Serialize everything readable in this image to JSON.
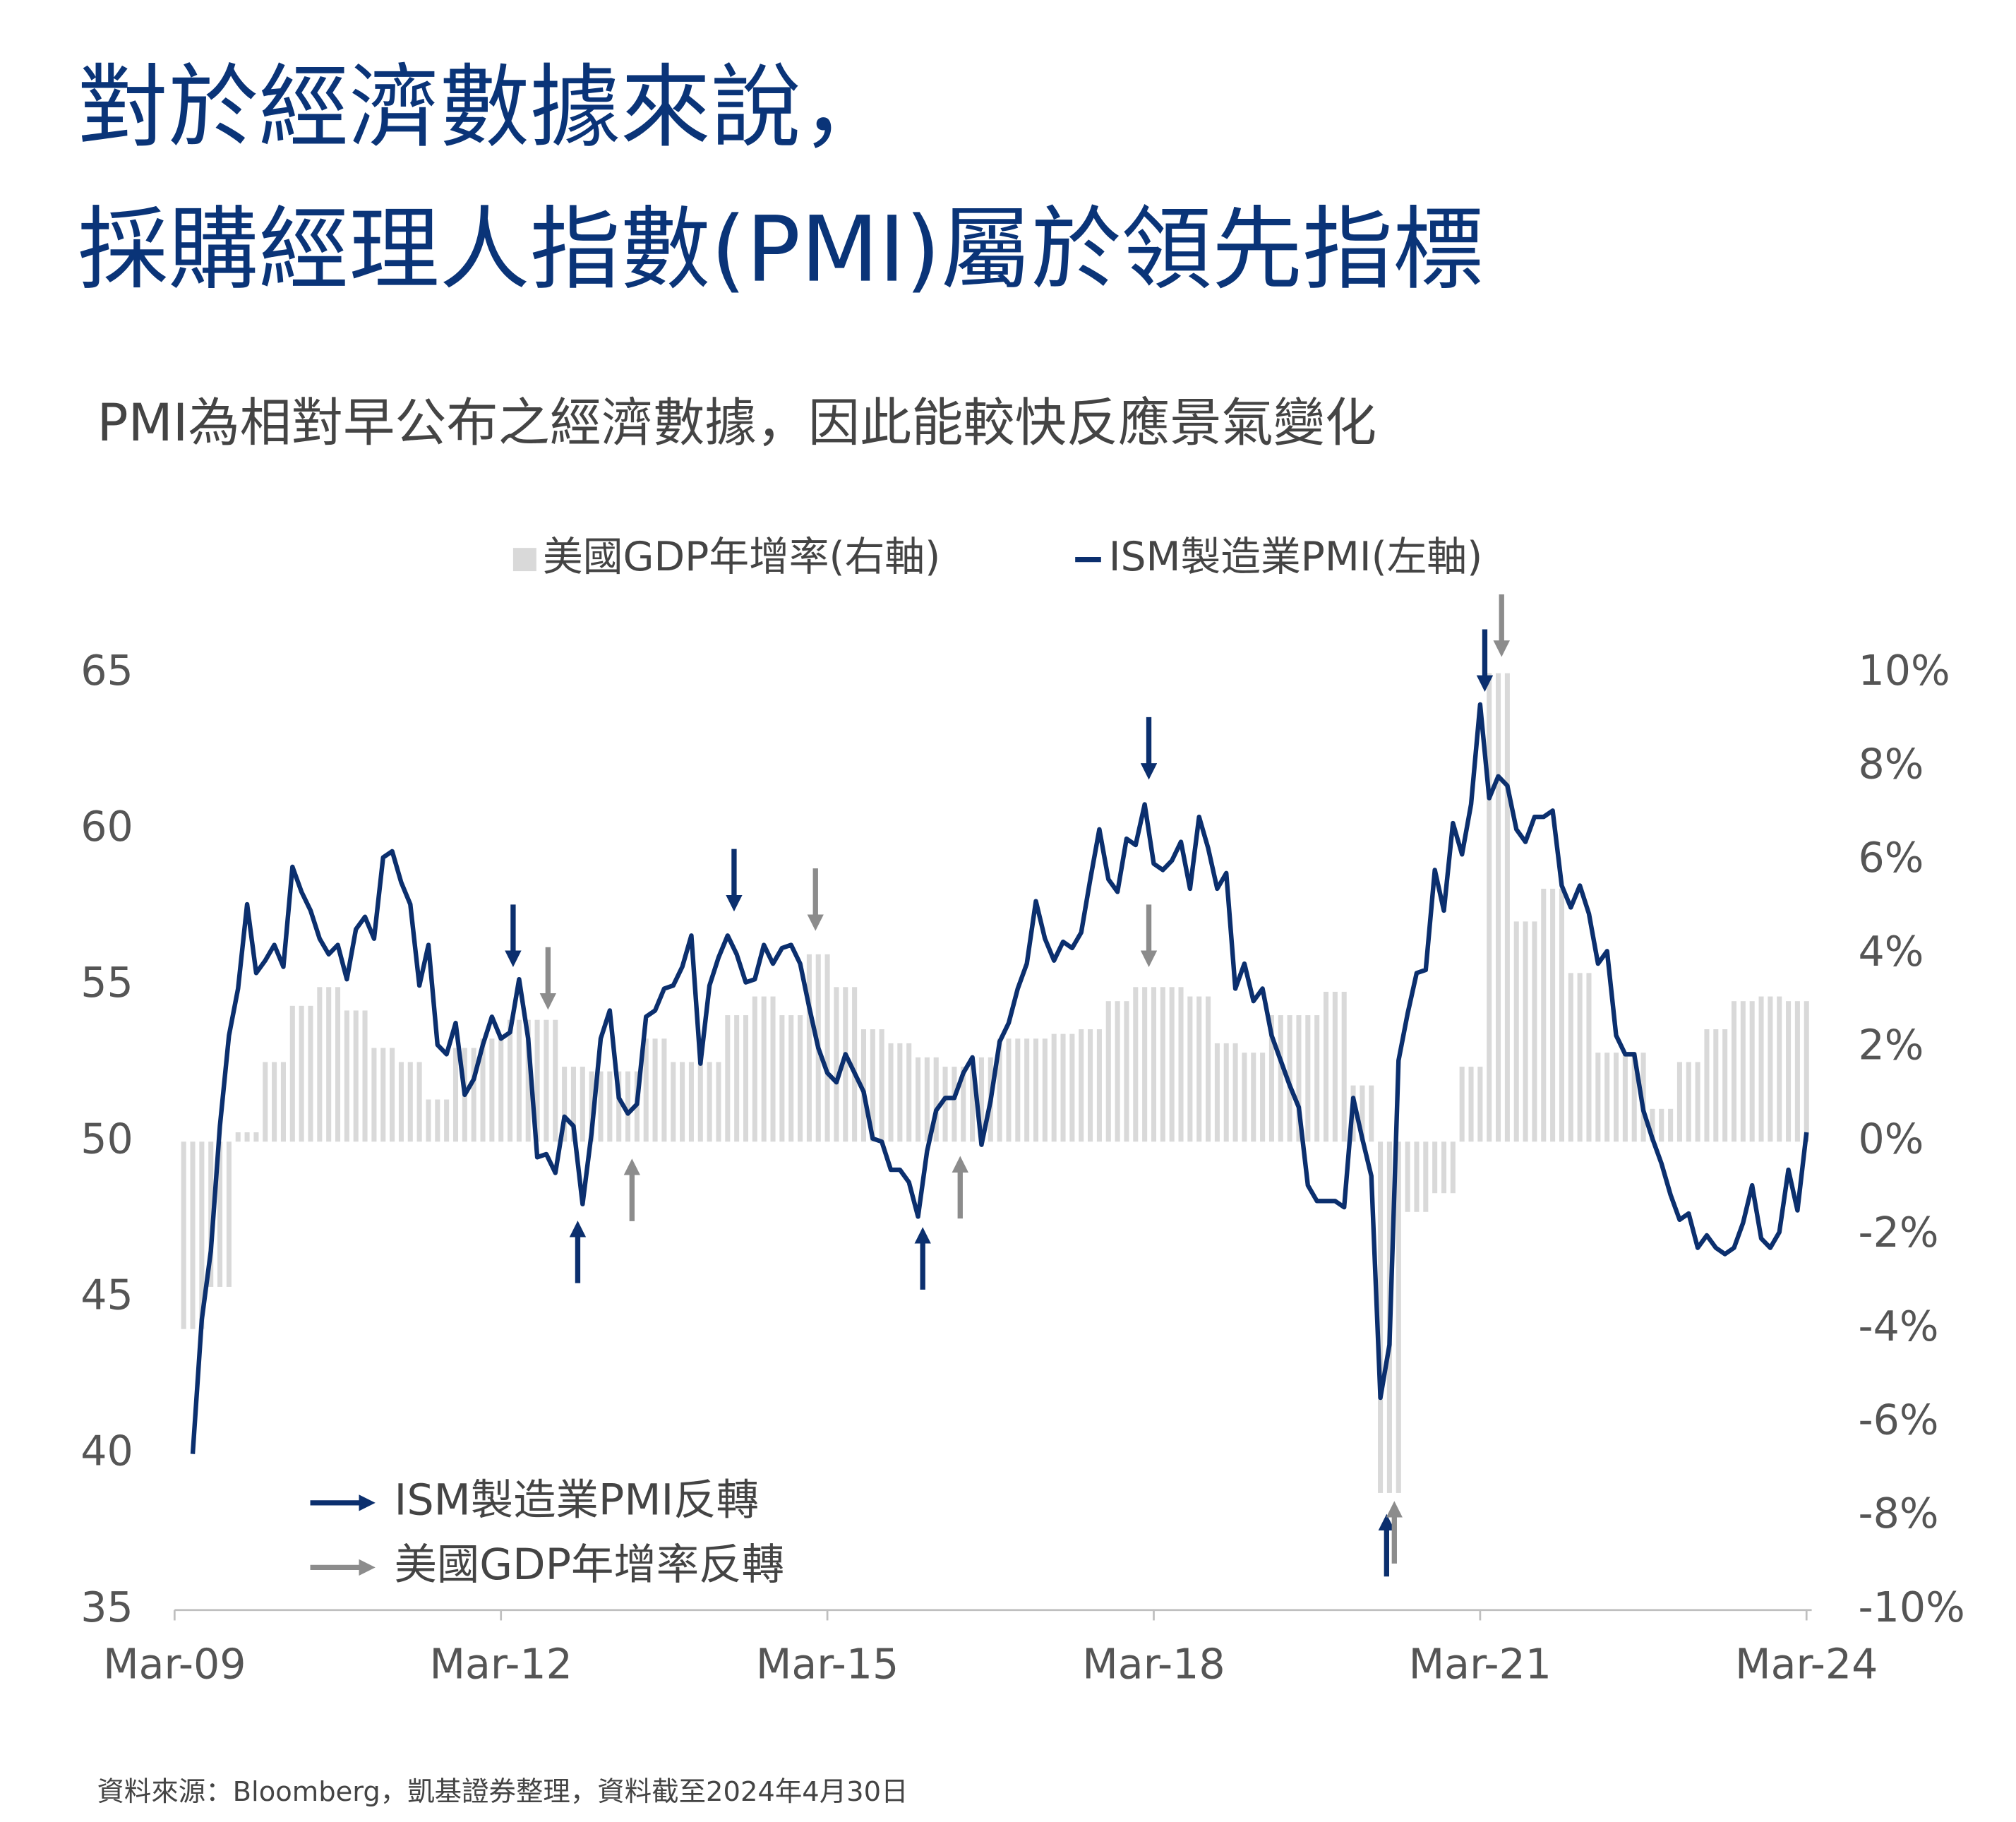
{
  "chart_data": {
    "type": "bar",
    "title": [
      "對於經濟數據來說，",
      "採購經理人指數(PMI)屬於領先指標"
    ],
    "subtitle": "PMI為相對早公布之經濟數據，因此能較快反應景氣變化",
    "source": "資料來源：Bloomberg，凱基證券整理，資料截至2024年4月30日",
    "categories": [
      "Mar-09",
      null,
      null,
      null,
      null,
      null,
      null,
      null,
      null,
      null,
      null,
      null,
      null,
      null,
      null,
      null,
      null,
      null,
      null,
      null,
      null,
      null,
      null,
      null,
      null,
      null,
      null,
      null,
      null,
      null,
      null,
      null,
      null,
      null,
      null,
      null,
      "Mar-12",
      null,
      null,
      null,
      null,
      null,
      null,
      null,
      null,
      null,
      null,
      null,
      null,
      null,
      null,
      null,
      null,
      null,
      null,
      null,
      null,
      null,
      null,
      null,
      null,
      null,
      null,
      null,
      null,
      null,
      null,
      null,
      null,
      null,
      null,
      null,
      "Mar-15",
      null,
      null,
      null,
      null,
      null,
      null,
      null,
      null,
      null,
      null,
      null,
      null,
      null,
      null,
      null,
      null,
      null,
      null,
      null,
      null,
      null,
      null,
      null,
      null,
      null,
      null,
      null,
      null,
      null,
      null,
      null,
      null,
      null,
      null,
      null,
      "Mar-18",
      null,
      null,
      null,
      null,
      null,
      null,
      null,
      null,
      null,
      null,
      null,
      null,
      null,
      null,
      null,
      null,
      null,
      null,
      null,
      null,
      null,
      null,
      null,
      null,
      null,
      null,
      null,
      null,
      null,
      null,
      null,
      null,
      null,
      null,
      null,
      "Mar-21",
      null,
      null,
      null,
      null,
      null,
      null,
      null,
      null,
      null,
      null,
      null,
      null,
      null,
      null,
      null,
      null,
      null,
      null,
      null,
      null,
      null,
      null,
      null,
      null,
      null,
      null,
      null,
      null,
      null,
      null,
      null,
      null,
      null,
      null,
      null,
      "Mar-24"
    ],
    "series": [
      {
        "name": "美國GDP年增率(右軸)",
        "type": "bar",
        "axis": "y2",
        "color": "#d9d9d9",
        "values": [
          null,
          -4,
          -4,
          -4,
          -3.1,
          -3.1,
          -3.1,
          0.2,
          0.2,
          0.2,
          1.7,
          1.7,
          1.7,
          2.9,
          2.9,
          2.9,
          3.3,
          3.3,
          3.3,
          2.8,
          2.8,
          2.8,
          2,
          2,
          2,
          1.7,
          1.7,
          1.7,
          0.9,
          0.9,
          0.9,
          2,
          2,
          2,
          2.2,
          2.2,
          2.2,
          2.6,
          2.6,
          2.6,
          2.6,
          2.6,
          2.6,
          1.6,
          1.6,
          1.6,
          1.5,
          1.5,
          1.5,
          1.5,
          1.5,
          1.5,
          2.2,
          2.2,
          2.2,
          1.7,
          1.7,
          1.7,
          1.7,
          1.7,
          1.7,
          2.7,
          2.7,
          2.7,
          3.1,
          3.1,
          3.1,
          2.7,
          2.7,
          2.7,
          4,
          4,
          4,
          3.3,
          3.3,
          3.3,
          2.4,
          2.4,
          2.4,
          2.1,
          2.1,
          2.1,
          1.8,
          1.8,
          1.8,
          1.6,
          1.6,
          1.6,
          1.8,
          1.8,
          1.8,
          2.2,
          2.2,
          2.2,
          2.2,
          2.2,
          2.2,
          2.3,
          2.3,
          2.3,
          2.4,
          2.4,
          2.4,
          3,
          3,
          3,
          3.3,
          3.3,
          3.3,
          3.3,
          3.3,
          3.3,
          3.1,
          3.1,
          3.1,
          2.1,
          2.1,
          2.1,
          1.9,
          1.9,
          1.9,
          2.7,
          2.7,
          2.7,
          2.7,
          2.7,
          2.7,
          3.2,
          3.2,
          3.2,
          1.2,
          1.2,
          1.2,
          -7.5,
          -7.5,
          -7.5,
          -1.5,
          -1.5,
          -1.5,
          -1.1,
          -1.1,
          -1.1,
          1.6,
          1.6,
          1.6,
          10,
          10,
          10,
          4.7,
          4.7,
          4.7,
          5.4,
          5.4,
          5.4,
          3.6,
          3.6,
          3.6,
          1.9,
          1.9,
          1.9,
          1.9,
          1.9,
          1.9,
          0.7,
          0.7,
          0.7,
          1.7,
          1.7,
          1.7,
          2.4,
          2.4,
          2.4,
          3,
          3,
          3,
          3.1,
          3.1,
          3.1,
          3,
          3,
          3
        ]
      },
      {
        "name": "ISM製造業PMI(左軸)",
        "type": "line",
        "color": "#0b2f6e",
        "values": [
          null,
          null,
          40,
          44.3,
          46.5,
          50.5,
          53.4,
          54.9,
          57.6,
          55.4,
          55.8,
          56.3,
          55.6,
          58.8,
          58,
          57.4,
          56.5,
          56,
          56.3,
          55.2,
          56.8,
          57.2,
          56.5,
          59.1,
          59.3,
          58.3,
          57.6,
          55,
          56.3,
          53.1,
          52.8,
          53.8,
          51.5,
          52,
          53.1,
          54,
          53.3,
          53.5,
          55.2,
          53.3,
          49.5,
          49.6,
          49,
          50.8,
          50.5,
          48,
          50.3,
          53.3,
          54.2,
          51.4,
          50.9,
          51.2,
          54,
          54.2,
          54.9,
          55,
          55.6,
          56.6,
          52.5,
          55,
          55.9,
          56.6,
          56,
          55.1,
          55.2,
          56.3,
          55.7,
          56.2,
          56.3,
          55.7,
          54.3,
          53,
          52.2,
          51.9,
          52.8,
          52.2,
          51.6,
          50.1,
          50,
          49.1,
          49.1,
          48.7,
          47.6,
          49.7,
          51,
          51.4,
          51.4,
          52.2,
          52.7,
          49.9,
          51.3,
          53.2,
          53.8,
          54.9,
          55.7,
          57.7,
          56.5,
          55.8,
          56.4,
          56.2,
          56.7,
          58.4,
          60,
          58.4,
          58,
          59.7,
          59.5,
          60.8,
          58.9,
          58.7,
          59,
          59.6,
          58.1,
          60.4,
          59.4,
          58.1,
          58.6,
          54.9,
          55.7,
          54.5,
          54.9,
          53.4,
          52.6,
          51.8,
          51.1,
          48.6,
          48.1,
          48.1,
          48.1,
          47.9,
          51.4,
          50.1,
          48.9,
          41.8,
          43.5,
          52.6,
          54.1,
          55.4,
          55.5,
          58.7,
          57.4,
          60.2,
          59.2,
          60.8,
          64,
          61,
          61.7,
          61.4,
          60,
          59.6,
          60.4,
          60.4,
          60.6,
          58.2,
          57.5,
          58.2,
          57.3,
          55.7,
          56.1,
          53.4,
          52.8,
          52.8,
          51,
          50.1,
          49.3,
          48.3,
          47.5,
          47.7,
          46.6,
          47,
          46.6,
          46.4,
          46.6,
          47.4,
          48.6,
          46.9,
          46.6,
          47.1,
          49.1,
          47.8,
          50.3
        ]
      }
    ],
    "ylim": [
      35,
      65
    ],
    "yticks": [
      35,
      40,
      45,
      50,
      55,
      60,
      65
    ],
    "y2lim": [
      -10,
      10
    ],
    "y2ticks": [
      {
        "value": -10,
        "label": "-10%"
      },
      {
        "value": -8,
        "label": "-8%"
      },
      {
        "value": -6,
        "label": "-6%"
      },
      {
        "value": -4,
        "label": "-4%"
      },
      {
        "value": -2,
        "label": "-2%"
      },
      {
        "value": 0,
        "label": "0%"
      },
      {
        "value": 2,
        "label": "2%"
      },
      {
        "value": 4,
        "label": "4%"
      },
      {
        "value": 6,
        "label": "6%"
      },
      {
        "value": 8,
        "label": "8%"
      },
      {
        "value": 10,
        "label": "10%"
      }
    ],
    "annotations": [
      {
        "text": "ISM製造業PMI反轉",
        "color": "#0b2f6e"
      },
      {
        "text": "美國GDP年增率反轉",
        "color": "#8c8c8c"
      }
    ]
  }
}
